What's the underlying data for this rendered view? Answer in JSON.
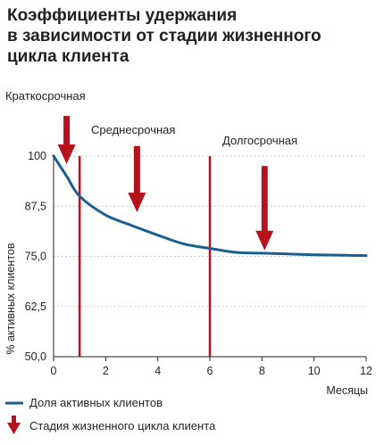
{
  "title_lines": [
    "Коэффициенты удержания",
    "в зависимости от стадии жизненного",
    "цикла клиента"
  ],
  "colors": {
    "line": "#1b5f8c",
    "stage": "#b5121b",
    "grid": "#bdbdbd",
    "text": "#231f20"
  },
  "legend": {
    "line_label": "Доля активных клиентов",
    "arrow_label": "Стадия жизненного цикла клиента"
  },
  "chart_data": {
    "type": "line",
    "title": "Коэффициенты удержания в зависимости от стадии жизненного цикла клиента",
    "xlabel": "Месяцы",
    "ylabel": "% активных клиентов",
    "xlim": [
      0,
      12
    ],
    "ylim": [
      50,
      100
    ],
    "xticks": [
      0,
      2,
      4,
      6,
      8,
      10,
      12
    ],
    "yticks": [
      50,
      62.5,
      75,
      87.5,
      100
    ],
    "ytick_labels": [
      "50,0",
      "62,5",
      "75,0",
      "87,5",
      "100"
    ],
    "grid": "horizontal-dotted",
    "series": [
      {
        "name": "Доля активных клиентов",
        "x": [
          0,
          0.5,
          1,
          2,
          3,
          4,
          5,
          6,
          7,
          8,
          9,
          10,
          11,
          12
        ],
        "y": [
          100,
          95,
          90,
          85.3,
          82.7,
          80.3,
          78.1,
          77,
          76,
          75.8,
          75.6,
          75.4,
          75.3,
          75.2
        ]
      }
    ],
    "stage_lines": [
      1,
      6
    ],
    "stages": [
      {
        "label": "Краткосрочная",
        "arrow_x": 0.5,
        "arrow_y_top": 110,
        "arrow_y_tip": 98
      },
      {
        "label": "Среднесрочная",
        "arrow_x": 3.2,
        "arrow_y_top": 102.5,
        "arrow_y_tip": 86
      },
      {
        "label": "Долгосрочная",
        "arrow_x": 8.1,
        "arrow_y_top": 97.5,
        "arrow_y_tip": 76.5
      }
    ]
  }
}
